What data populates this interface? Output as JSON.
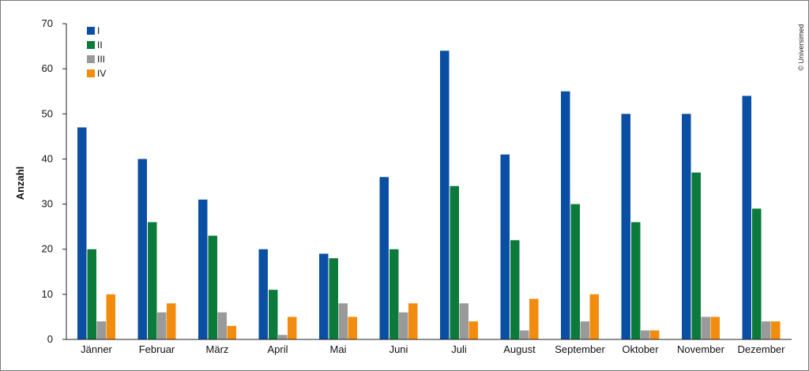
{
  "chart_data": {
    "type": "bar",
    "ylabel": "Anzahl",
    "ylim": [
      0,
      70
    ],
    "yticks": [
      0,
      10,
      20,
      30,
      40,
      50,
      60,
      70
    ],
    "grid": false,
    "legend_position": "top-left",
    "categories": [
      "Jänner",
      "Februar",
      "März",
      "April",
      "Mai",
      "Juni",
      "Juli",
      "August",
      "September",
      "Oktober",
      "November",
      "Dezember"
    ],
    "series": [
      {
        "name": "I",
        "color": "#0a4fa3",
        "values": [
          47,
          40,
          31,
          20,
          19,
          36,
          64,
          41,
          55,
          50,
          50,
          54
        ]
      },
      {
        "name": "II",
        "color": "#0b7a3b",
        "values": [
          20,
          26,
          23,
          11,
          18,
          20,
          34,
          22,
          30,
          26,
          37,
          29
        ]
      },
      {
        "name": "III",
        "color": "#9a9a9a",
        "values": [
          4,
          6,
          6,
          1,
          8,
          6,
          8,
          2,
          4,
          2,
          5,
          4
        ]
      },
      {
        "name": "IV",
        "color": "#f28c0f",
        "values": [
          10,
          8,
          3,
          5,
          5,
          8,
          4,
          9,
          10,
          2,
          5,
          4
        ]
      }
    ]
  },
  "copyright": "© Universimed"
}
